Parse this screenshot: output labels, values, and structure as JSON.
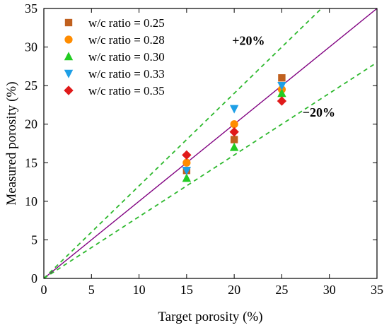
{
  "chart_data": {
    "type": "scatter",
    "title": "",
    "xlabel": "Target porosity (%)",
    "ylabel": "Measured porosity (%)",
    "xlim": [
      0,
      35
    ],
    "ylim": [
      0,
      35
    ],
    "xticks": [
      0,
      5,
      10,
      15,
      20,
      25,
      30,
      35
    ],
    "yticks": [
      0,
      5,
      10,
      15,
      20,
      25,
      30,
      35
    ],
    "grid": false,
    "legend_position": "top-left",
    "series": [
      {
        "name": "w/c ratio = 0.25",
        "marker": "square",
        "color": "#c0601e",
        "x": [
          15,
          20,
          25
        ],
        "y": [
          14,
          18,
          26
        ]
      },
      {
        "name": "w/c ratio = 0.28",
        "marker": "circle",
        "color": "#ff8c00",
        "x": [
          15,
          20,
          25
        ],
        "y": [
          15,
          20,
          24.5
        ]
      },
      {
        "name": "w/c ratio = 0.30",
        "marker": "triangle-up",
        "color": "#22cc22",
        "x": [
          15,
          20,
          25
        ],
        "y": [
          13,
          17,
          24
        ]
      },
      {
        "name": "w/c ratio = 0.33",
        "marker": "triangle-down",
        "color": "#1e9fe6",
        "x": [
          15,
          20,
          25
        ],
        "y": [
          14,
          22,
          25
        ]
      },
      {
        "name": "w/c ratio = 0.35",
        "marker": "diamond",
        "color": "#e01a1a",
        "x": [
          15,
          20,
          25
        ],
        "y": [
          16,
          19,
          23
        ]
      }
    ],
    "reference_lines": [
      {
        "kind": "identity",
        "slope": 1.0,
        "color": "#800080",
        "style": "solid"
      },
      {
        "kind": "upper-bound",
        "slope": 1.2,
        "color": "#2db82d",
        "style": "dashed",
        "label": "+20%"
      },
      {
        "kind": "lower-bound",
        "slope": 0.8,
        "color": "#2db82d",
        "style": "dashed",
        "label": "−20%"
      }
    ]
  }
}
